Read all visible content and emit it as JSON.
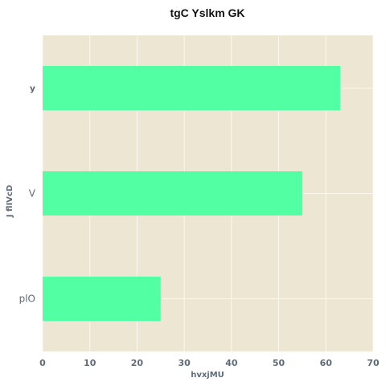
{
  "chart_data": {
    "type": "bar",
    "orientation": "horizontal",
    "title": "tgC Yslkm GK",
    "xlabel": "hvxjMU",
    "ylabel": "J flIVcD",
    "categories": [
      "y",
      "V",
      "plO"
    ],
    "values": [
      63,
      55,
      25
    ],
    "xlim": [
      0,
      70
    ],
    "xticks": [
      "0",
      "10",
      "20",
      "30",
      "40",
      "50",
      "60",
      "70"
    ],
    "grid": true,
    "legend": "none",
    "colors": {
      "bar": "#52ffa3",
      "plot_background": "#ede6d3",
      "grid": "#fbf8f0"
    }
  }
}
